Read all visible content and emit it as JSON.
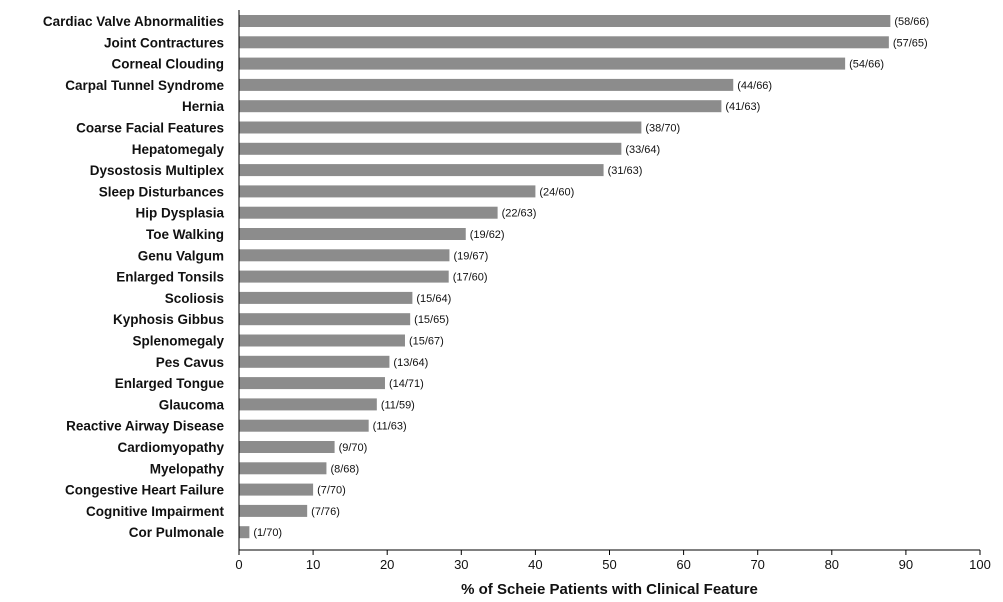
{
  "chart_data": {
    "type": "bar",
    "orientation": "horizontal",
    "xlabel": "% of Scheie Patients with Clinical Feature",
    "xlim": [
      0,
      100
    ],
    "xticks": [
      0,
      10,
      20,
      30,
      40,
      50,
      60,
      70,
      80,
      90,
      100
    ],
    "grid": false,
    "bar_color": "#8c8c8c",
    "categories": [
      "Cardiac Valve Abnormalities",
      "Joint Contractures",
      "Corneal Clouding",
      "Carpal Tunnel Syndrome",
      "Hernia",
      "Coarse Facial Features",
      "Hepatomegaly",
      "Dysostosis Multiplex",
      "Sleep Disturbances",
      "Hip Dysplasia",
      "Toe Walking",
      "Genu Valgum",
      "Enlarged Tonsils",
      "Scoliosis",
      "Kyphosis Gibbus",
      "Splenomegaly",
      "Pes Cavus",
      "Enlarged Tongue",
      "Glaucoma",
      "Reactive Airway Disease",
      "Cardiomyopathy",
      "Myelopathy",
      "Congestive Heart Failure",
      "Cognitive Impairment",
      "Cor Pulmonale"
    ],
    "values": [
      87.9,
      87.7,
      81.8,
      66.7,
      65.1,
      54.3,
      51.6,
      49.2,
      40.0,
      34.9,
      30.6,
      28.4,
      28.3,
      23.4,
      23.1,
      22.4,
      20.3,
      19.7,
      18.6,
      17.5,
      12.9,
      11.8,
      10.0,
      9.2,
      1.4
    ],
    "data_labels": [
      "(58/66)",
      "(57/65)",
      "(54/66)",
      "(44/66)",
      "(41/63)",
      "(38/70)",
      "(33/64)",
      "(31/63)",
      "(24/60)",
      "(22/63)",
      "(19/62)",
      "(19/67)",
      "(17/60)",
      "(15/64)",
      "(15/65)",
      "(15/67)",
      "(13/64)",
      "(14/71)",
      "(11/59)",
      "(11/63)",
      "(9/70)",
      "(8/68)",
      "(7/70)",
      "(7/76)",
      "(1/70)"
    ]
  }
}
